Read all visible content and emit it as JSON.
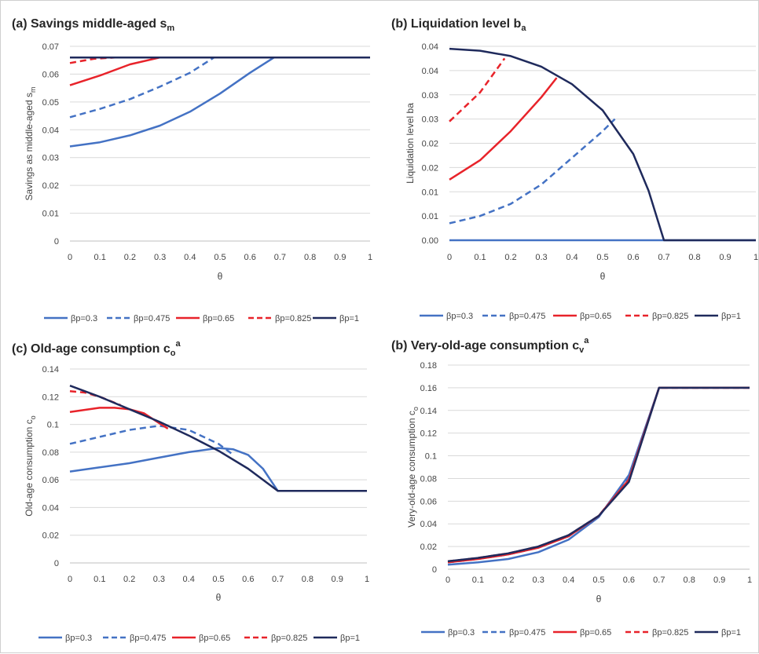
{
  "colors": {
    "blue": "#4472C4",
    "red": "#E8232A",
    "navy": "#1F2A5C",
    "grid": "#D9D9D9",
    "text": "#404040"
  },
  "chart_data": [
    {
      "type": "line",
      "title": "(a) Savings middle-aged s",
      "title_sub": "m",
      "xlabel": "θ",
      "ylabel": "Savings as middle-aged s",
      "ylabel_sub": "m",
      "xlim": [
        0,
        1
      ],
      "ylim": [
        0,
        0.07
      ],
      "x_ticks": [
        "0",
        "0.1",
        "0.2",
        "0.3",
        "0.4",
        "0.5",
        "0.6",
        "0.7",
        "0.8",
        "0.9",
        "1"
      ],
      "y_ticks": [
        "0",
        "0.01",
        "0.02",
        "0.03",
        "0.04",
        "0.05",
        "0.06",
        "0.07"
      ],
      "grid": true,
      "legend": "bottom",
      "series": [
        {
          "name": "βp=0.3",
          "color": "blue",
          "dash": false,
          "points": [
            [
              0,
              0.034
            ],
            [
              0.1,
              0.0355
            ],
            [
              0.2,
              0.038
            ],
            [
              0.3,
              0.0415
            ],
            [
              0.4,
              0.0465
            ],
            [
              0.5,
              0.053
            ],
            [
              0.6,
              0.0605
            ],
            [
              0.68,
              0.066
            ],
            [
              1,
              0.066
            ]
          ]
        },
        {
          "name": "βp=0.475",
          "color": "blue",
          "dash": true,
          "points": [
            [
              0,
              0.0445
            ],
            [
              0.1,
              0.0475
            ],
            [
              0.2,
              0.051
            ],
            [
              0.3,
              0.0555
            ],
            [
              0.4,
              0.0605
            ],
            [
              0.48,
              0.066
            ],
            [
              1,
              0.066
            ]
          ]
        },
        {
          "name": "βp=0.65",
          "color": "red",
          "dash": false,
          "points": [
            [
              0,
              0.056
            ],
            [
              0.1,
              0.0595
            ],
            [
              0.2,
              0.0635
            ],
            [
              0.3,
              0.066
            ]
          ]
        },
        {
          "name": "βp=0.825",
          "color": "red",
          "dash": true,
          "points": [
            [
              0,
              0.064
            ],
            [
              0.08,
              0.0655
            ],
            [
              0.15,
              0.066
            ]
          ]
        },
        {
          "name": "βp=1",
          "color": "navy",
          "dash": false,
          "points": [
            [
              0,
              0.066
            ],
            [
              1,
              0.066
            ]
          ]
        }
      ]
    },
    {
      "type": "line",
      "title": "(b) Liquidation level b",
      "title_sub": "a",
      "xlabel": "θ",
      "ylabel": "Liquidation level ba",
      "ylabel_sub": "",
      "xlim": [
        0,
        1
      ],
      "ylim": [
        0,
        0.04
      ],
      "x_ticks": [
        "0",
        "0.1",
        "0.2",
        "0.3",
        "0.4",
        "0.5",
        "0.6",
        "0.7",
        "0.8",
        "0.9",
        "1"
      ],
      "y_ticks": [
        "0.00",
        "0.01",
        "0.01",
        "0.02",
        "0.02",
        "0.03",
        "0.03",
        "0.04",
        "0.04"
      ],
      "grid": true,
      "legend": "bottom",
      "series": [
        {
          "name": "βp=0.3",
          "color": "blue",
          "dash": false,
          "points": [
            [
              0,
              0
            ],
            [
              1,
              0
            ]
          ]
        },
        {
          "name": "βp=0.475",
          "color": "blue",
          "dash": true,
          "points": [
            [
              0,
              0.0035
            ],
            [
              0.1,
              0.005
            ],
            [
              0.2,
              0.0075
            ],
            [
              0.3,
              0.0115
            ],
            [
              0.4,
              0.017
            ],
            [
              0.5,
              0.0225
            ],
            [
              0.54,
              0.025
            ]
          ]
        },
        {
          "name": "βp=0.65",
          "color": "red",
          "dash": false,
          "points": [
            [
              0,
              0.0125
            ],
            [
              0.1,
              0.0165
            ],
            [
              0.2,
              0.0225
            ],
            [
              0.3,
              0.0295
            ],
            [
              0.35,
              0.0335
            ]
          ]
        },
        {
          "name": "βp=0.825",
          "color": "red",
          "dash": true,
          "points": [
            [
              0,
              0.0245
            ],
            [
              0.1,
              0.0305
            ],
            [
              0.18,
              0.0375
            ]
          ]
        },
        {
          "name": "βp=1",
          "color": "navy",
          "dash": false,
          "points": [
            [
              0,
              0.0395
            ],
            [
              0.1,
              0.0391
            ],
            [
              0.2,
              0.038
            ],
            [
              0.3,
              0.0358
            ],
            [
              0.4,
              0.0322
            ],
            [
              0.5,
              0.0268
            ],
            [
              0.6,
              0.0178
            ],
            [
              0.65,
              0.0102
            ],
            [
              0.7,
              0
            ],
            [
              1,
              0
            ]
          ]
        }
      ]
    },
    {
      "type": "line",
      "title": "(c) Old-age consumption c",
      "title_sub": "o",
      "title_sup": "a",
      "xlabel": "θ",
      "ylabel": "Old-age consumption c",
      "ylabel_sub": "o",
      "xlim": [
        0,
        1
      ],
      "ylim": [
        0,
        0.14
      ],
      "x_ticks": [
        "0",
        "0.1",
        "0.2",
        "0.3",
        "0.4",
        "0.5",
        "0.6",
        "0.7",
        "0.8",
        "0.9",
        "1"
      ],
      "y_ticks": [
        "0",
        "0.02",
        "0.04",
        "0.06",
        "0.08",
        "0.1",
        "0.12",
        "0.14"
      ],
      "grid": true,
      "legend": "bottom",
      "series": [
        {
          "name": "βp=0.3",
          "color": "blue",
          "dash": false,
          "points": [
            [
              0,
              0.066
            ],
            [
              0.1,
              0.069
            ],
            [
              0.2,
              0.072
            ],
            [
              0.3,
              0.076
            ],
            [
              0.4,
              0.08
            ],
            [
              0.5,
              0.083
            ],
            [
              0.55,
              0.082
            ],
            [
              0.6,
              0.078
            ],
            [
              0.65,
              0.068
            ],
            [
              0.7,
              0.052
            ],
            [
              1,
              0.052
            ]
          ]
        },
        {
          "name": "βp=0.475",
          "color": "blue",
          "dash": true,
          "points": [
            [
              0,
              0.086
            ],
            [
              0.1,
              0.091
            ],
            [
              0.2,
              0.096
            ],
            [
              0.3,
              0.099
            ],
            [
              0.4,
              0.096
            ],
            [
              0.5,
              0.086
            ],
            [
              0.55,
              0.078
            ]
          ]
        },
        {
          "name": "βp=0.65",
          "color": "red",
          "dash": false,
          "points": [
            [
              0,
              0.109
            ],
            [
              0.1,
              0.112
            ],
            [
              0.15,
              0.112
            ],
            [
              0.2,
              0.111
            ],
            [
              0.25,
              0.108
            ],
            [
              0.3,
              0.101
            ],
            [
              0.33,
              0.097
            ]
          ]
        },
        {
          "name": "βp=0.825",
          "color": "red",
          "dash": true,
          "points": [
            [
              0,
              0.124
            ],
            [
              0.05,
              0.123
            ],
            [
              0.1,
              0.12
            ],
            [
              0.17,
              0.114
            ]
          ]
        },
        {
          "name": "βp=1",
          "color": "navy",
          "dash": false,
          "points": [
            [
              0,
              0.128
            ],
            [
              0.1,
              0.12
            ],
            [
              0.2,
              0.111
            ],
            [
              0.3,
              0.102
            ],
            [
              0.4,
              0.092
            ],
            [
              0.5,
              0.081
            ],
            [
              0.6,
              0.068
            ],
            [
              0.7,
              0.052
            ],
            [
              1,
              0.052
            ]
          ]
        }
      ]
    },
    {
      "type": "line",
      "title": "(b) Very-old-age consumption c",
      "title_sub": "v",
      "title_sup": "a",
      "xlabel": "θ",
      "ylabel": "Very-old-age consumption c",
      "ylabel_sub": "o",
      "xlim": [
        0,
        1
      ],
      "ylim": [
        0,
        0.18
      ],
      "x_ticks": [
        "0",
        "0.1",
        "0.2",
        "0.3",
        "0.4",
        "0.5",
        "0.6",
        "0.7",
        "0.8",
        "0.9",
        "1"
      ],
      "y_ticks": [
        "0",
        "0.02",
        "0.04",
        "0.06",
        "0.08",
        "0.1",
        "0.12",
        "0.14",
        "0.16",
        "0.18"
      ],
      "grid": true,
      "legend": "bottom",
      "series": [
        {
          "name": "βp=0.3",
          "color": "blue",
          "dash": false,
          "points": [
            [
              0,
              0.004
            ],
            [
              0.1,
              0.006
            ],
            [
              0.2,
              0.009
            ],
            [
              0.3,
              0.015
            ],
            [
              0.4,
              0.026
            ],
            [
              0.5,
              0.046
            ],
            [
              0.6,
              0.083
            ],
            [
              0.7,
              0.16
            ],
            [
              1,
              0.16
            ]
          ]
        },
        {
          "name": "βp=0.475",
          "color": "blue",
          "dash": true,
          "points": [
            [
              0,
              0.006
            ],
            [
              0.1,
              0.009
            ],
            [
              0.2,
              0.013
            ],
            [
              0.3,
              0.019
            ],
            [
              0.4,
              0.029
            ],
            [
              0.5,
              0.047
            ],
            [
              0.6,
              0.08
            ],
            [
              0.7,
              0.16
            ],
            [
              1,
              0.16
            ]
          ]
        },
        {
          "name": "βp=0.65",
          "color": "red",
          "dash": false,
          "points": [
            [
              0,
              0.006
            ],
            [
              0.1,
              0.009
            ],
            [
              0.2,
              0.013
            ],
            [
              0.3,
              0.019
            ],
            [
              0.4,
              0.029
            ],
            [
              0.5,
              0.047
            ],
            [
              0.6,
              0.079
            ],
            [
              0.7,
              0.16
            ],
            [
              1,
              0.16
            ]
          ]
        },
        {
          "name": "βp=0.825",
          "color": "red",
          "dash": true,
          "points": [
            [
              0,
              0.007
            ],
            [
              0.1,
              0.01
            ],
            [
              0.2,
              0.014
            ],
            [
              0.3,
              0.02
            ],
            [
              0.4,
              0.03
            ],
            [
              0.5,
              0.047
            ],
            [
              0.6,
              0.079
            ],
            [
              0.7,
              0.16
            ],
            [
              1,
              0.16
            ]
          ]
        },
        {
          "name": "βp=1",
          "color": "navy",
          "dash": false,
          "points": [
            [
              0,
              0.007
            ],
            [
              0.1,
              0.01
            ],
            [
              0.2,
              0.014
            ],
            [
              0.3,
              0.02
            ],
            [
              0.4,
              0.03
            ],
            [
              0.5,
              0.047
            ],
            [
              0.6,
              0.077
            ],
            [
              0.7,
              0.16
            ],
            [
              1,
              0.16
            ]
          ]
        }
      ]
    }
  ]
}
